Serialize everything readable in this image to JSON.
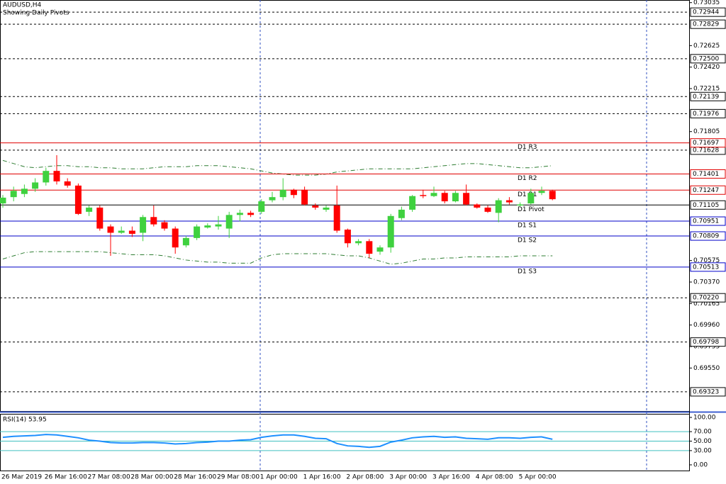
{
  "chart_data": [
    {
      "type": "candlestick",
      "title": "AUDUSD,H4",
      "subtitle": "Showing Daily Pivots",
      "categories": [
        "26 Mar 2019",
        null,
        null,
        null,
        "26 Mar 16:00",
        null,
        null,
        null,
        "27 Mar 08:00",
        null,
        null,
        null,
        "28 Mar 00:00",
        null,
        null,
        null,
        "28 Mar 16:00",
        null,
        null,
        null,
        "29 Mar 08:00",
        null,
        null,
        null,
        "1 Apr 00:00",
        null,
        null,
        null,
        "1 Apr 16:00",
        null,
        null,
        null,
        "2 Apr 08:00",
        null,
        null,
        null,
        "3 Apr 00:00",
        null,
        null,
        null,
        "3 Apr 16:00",
        null,
        null,
        null,
        "4 Apr 08:00",
        null,
        null,
        null,
        "5 Apr 00:00",
        null,
        null,
        null
      ],
      "open": [
        0.7112,
        0.7118,
        0.7121,
        0.7126,
        0.7132,
        0.7143,
        0.7133,
        0.7129,
        0.7104,
        0.7108,
        0.709,
        0.7084,
        0.7086,
        0.7084,
        0.7099,
        0.7094,
        0.7088,
        0.7072,
        0.7079,
        0.7089,
        0.709,
        0.7088,
        0.7101,
        0.7103,
        0.7104,
        0.7115,
        0.7118,
        0.7125,
        0.7125,
        0.711,
        0.7106,
        0.711,
        0.7087,
        0.7074,
        0.7076,
        0.7066,
        0.707,
        0.7098,
        0.7106,
        0.712,
        0.7119,
        0.7122,
        0.7114,
        0.7122,
        0.7111,
        0.7108,
        0.7103,
        0.7115,
        0.711,
        0.7112,
        0.7122,
        0.7124
      ],
      "high": [
        0.712,
        0.7128,
        0.713,
        0.7136,
        0.7146,
        0.7158,
        0.7136,
        0.7131,
        0.711,
        0.711,
        0.7092,
        0.709,
        0.709,
        0.7101,
        0.711,
        0.7096,
        0.709,
        0.7081,
        0.7092,
        0.7093,
        0.71,
        0.7104,
        0.7106,
        0.7105,
        0.7116,
        0.7123,
        0.7136,
        0.7126,
        0.7128,
        0.7112,
        0.711,
        0.7129,
        0.7088,
        0.7078,
        0.7078,
        0.7072,
        0.7102,
        0.7109,
        0.712,
        0.7125,
        0.7128,
        0.7124,
        0.7124,
        0.713,
        0.7112,
        0.711,
        0.7117,
        0.7118,
        0.7113,
        0.7126,
        0.7128,
        0.7125
      ],
      "low": [
        0.7108,
        0.7114,
        0.7118,
        0.7123,
        0.7129,
        0.713,
        0.7127,
        0.7101,
        0.71,
        0.7086,
        0.7062,
        0.7083,
        0.708,
        0.7076,
        0.709,
        0.7086,
        0.7064,
        0.707,
        0.7077,
        0.7088,
        0.7087,
        0.7079,
        0.7095,
        0.7099,
        0.7102,
        0.7113,
        0.7115,
        0.7117,
        0.711,
        0.7106,
        0.7104,
        0.7084,
        0.707,
        0.7072,
        0.706,
        0.7063,
        0.7065,
        0.7096,
        0.7104,
        0.7117,
        0.7118,
        0.7112,
        0.7113,
        0.711,
        0.7107,
        0.7103,
        0.7094,
        0.7111,
        0.7109,
        0.7111,
        0.712,
        0.7115
      ],
      "close": [
        0.71175,
        0.7124,
        0.7126,
        0.7132,
        0.7143,
        0.7133,
        0.7129,
        0.7102,
        0.7108,
        0.7088,
        0.7084,
        0.7086,
        0.7083,
        0.7099,
        0.7092,
        0.7088,
        0.707,
        0.7079,
        0.709,
        0.7091,
        0.7092,
        0.7101,
        0.7103,
        0.7101,
        0.7114,
        0.7118,
        0.7125,
        0.712,
        0.7111,
        0.7108,
        0.7108,
        0.7086,
        0.7074,
        0.7076,
        0.7064,
        0.707,
        0.71,
        0.7106,
        0.7119,
        0.7119,
        0.7122,
        0.7114,
        0.7122,
        0.7111,
        0.7108,
        0.7104,
        0.7115,
        0.7113,
        0.7111,
        0.7122,
        0.7124,
        0.7116
      ],
      "up_color": "#3fd13f",
      "down_color": "#ff0000",
      "upper_band": {
        "color": "#2e7d32",
        "values": [
          0.7153,
          0.715,
          0.7147,
          0.7146,
          0.7147,
          0.7148,
          0.7148,
          0.7147,
          0.7147,
          0.7146,
          0.7146,
          0.7145,
          0.7145,
          0.7145,
          0.7146,
          0.7147,
          0.7147,
          0.7147,
          0.7148,
          0.7148,
          0.7148,
          0.7147,
          0.7146,
          0.7145,
          0.7143,
          0.7141,
          0.714,
          0.7139,
          0.7139,
          0.7139,
          0.714,
          0.7142,
          0.7143,
          0.7144,
          0.7145,
          0.7145,
          0.7145,
          0.7145,
          0.7145,
          0.7146,
          0.7147,
          0.7148,
          0.7149,
          0.715,
          0.715,
          0.7149,
          0.7148,
          0.7147,
          0.7146,
          0.7146,
          0.7147,
          0.7148
        ]
      },
      "lower_band": {
        "color": "#2e7d32",
        "values": [
          0.7059,
          0.7062,
          0.7065,
          0.7066,
          0.7066,
          0.7066,
          0.7066,
          0.7066,
          0.7066,
          0.7066,
          0.7065,
          0.7064,
          0.7063,
          0.7063,
          0.7063,
          0.7062,
          0.706,
          0.7058,
          0.7057,
          0.7056,
          0.7056,
          0.7055,
          0.7055,
          0.7055,
          0.706,
          0.7063,
          0.7064,
          0.7064,
          0.7064,
          0.7064,
          0.7064,
          0.7063,
          0.7062,
          0.7062,
          0.706,
          0.7057,
          0.7054,
          0.7055,
          0.7057,
          0.7059,
          0.7059,
          0.706,
          0.706,
          0.7061,
          0.7061,
          0.7061,
          0.7061,
          0.7061,
          0.7062,
          0.7062,
          0.7062,
          0.7062
        ]
      },
      "ylim": [
        0.6914,
        0.7306
      ],
      "yticks": [
        0.73035,
        0.72625,
        {
          "value": 0.7242,
          "label": "0.72420"
        },
        0.72215,
        0.71805,
        0.70575,
        {
          "value": 0.7037,
          "label": "0.70370"
        },
        0.70165,
        {
          "value": 0.6996,
          "label": "0.69960"
        },
        0.69755,
        {
          "value": 0.6955,
          "label": "0.69550"
        }
      ],
      "levels": [
        0.72944,
        0.72829,
        {
          "value": 0.725,
          "label": "0.72500"
        },
        0.72139,
        0.71976,
        0.71628,
        {
          "value": 0.7022,
          "label": "0.70220"
        },
        0.69798,
        0.69323
      ],
      "pivots": [
        {
          "name": "D1 R3",
          "value": 0.71697,
          "color": "#e00000"
        },
        {
          "name": "D1 R2",
          "value": 0.71401,
          "color": "#e00000"
        },
        {
          "name": "D1 R1",
          "value": 0.71247,
          "color": "#e00000"
        },
        {
          "name": "D1 Pivot",
          "value": 0.71105,
          "color": "#000000"
        },
        {
          "name": "D1 S1",
          "value": 0.70951,
          "color": "#0000c8"
        },
        {
          "name": "D1 S2",
          "value": 0.70809,
          "color": "#0000c8"
        },
        {
          "name": "D1 S3",
          "value": 0.70513,
          "color": "#0000c8"
        }
      ]
    },
    {
      "type": "line",
      "title": "RSI(14) 53.95",
      "color": "#1e90ff",
      "values": [
        58,
        60,
        61,
        62,
        64,
        63,
        60,
        57,
        52,
        50,
        47,
        46,
        46,
        47,
        47,
        46,
        44,
        45,
        47,
        48,
        50,
        50,
        52,
        53,
        58,
        61,
        63,
        63,
        60,
        56,
        55,
        45,
        40,
        39,
        37,
        39,
        48,
        52,
        57,
        59,
        60,
        58,
        59,
        56,
        55,
        54,
        57,
        57,
        56,
        58,
        59,
        53.95
      ],
      "ylim": [
        -12,
        107.5
      ],
      "yticks": [
        {
          "value": 100,
          "label": "100.00"
        },
        {
          "value": 70,
          "label": "70.00"
        },
        {
          "value": 50,
          "label": "50.00"
        },
        {
          "value": 30,
          "label": "30.00"
        },
        {
          "value": 0,
          "label": "0.00"
        }
      ],
      "levels": [
        70,
        50,
        30
      ],
      "level_color": "#40c0c0"
    }
  ]
}
